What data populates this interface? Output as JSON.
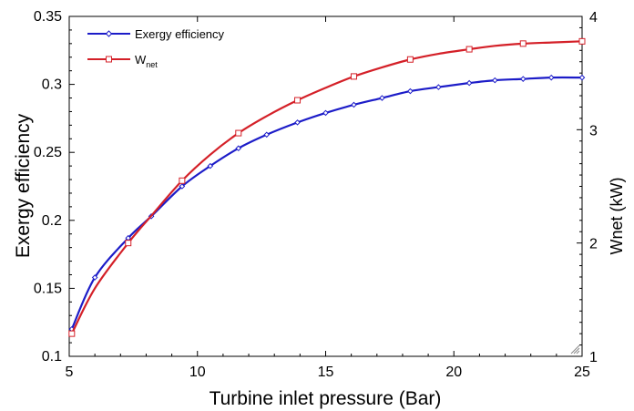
{
  "chart_data": {
    "type": "line",
    "title": "",
    "xlabel": "Turbine inlet pressure (Bar)",
    "ylabel_left": "Exergy efficiency",
    "ylabel_right": "Wnet (kW)",
    "xlim": [
      5,
      25
    ],
    "ylim_left": [
      0.1,
      0.35
    ],
    "ylim_right": [
      1,
      4
    ],
    "x_ticks": [
      "5",
      "10",
      "15",
      "20",
      "25"
    ],
    "y_left_ticks": [
      "0.1",
      "0.15",
      "0.2",
      "0.25",
      "0.3",
      "0.35"
    ],
    "y_right_ticks": [
      "1",
      "2",
      "3",
      "4"
    ],
    "grid": false,
    "legend_position": "top-left",
    "legend": {
      "exergy_label": "Exergy efficiency",
      "wnet_label_main": "W",
      "wnet_label_sub": "net"
    },
    "series": [
      {
        "name": "Exergy efficiency",
        "axis": "left",
        "color": "#1c1cc8",
        "marker": "diamond",
        "x": [
          5.1,
          6,
          7.3,
          8.2,
          9.4,
          10.5,
          11.6,
          12.7,
          13.9,
          15,
          16.1,
          17.2,
          18.3,
          19.4,
          20.6,
          21.6,
          22.7,
          23.8,
          25
        ],
        "y": [
          0.12,
          0.158,
          0.187,
          0.203,
          0.225,
          0.24,
          0.253,
          0.263,
          0.272,
          0.279,
          0.285,
          0.29,
          0.295,
          0.298,
          0.301,
          0.303,
          0.304,
          0.305,
          0.305
        ]
      },
      {
        "name": "Wnet",
        "axis": "right",
        "color": "#d42028",
        "marker": "square",
        "x": [
          5.1,
          6,
          7.3,
          8.2,
          9.4,
          10.5,
          11.6,
          12.7,
          13.9,
          15,
          16.1,
          17.2,
          18.3,
          19.4,
          20.6,
          21.6,
          22.7,
          23.8,
          25
        ],
        "y": [
          1.2,
          1.6,
          2.0,
          2.24,
          2.55,
          2.78,
          2.97,
          3.12,
          3.26,
          3.37,
          3.47,
          3.55,
          3.62,
          3.67,
          3.71,
          3.74,
          3.76,
          3.77,
          3.78
        ],
        "marker_x": [
          5.1,
          7.3,
          9.4,
          11.6,
          13.9,
          16.1,
          18.3,
          20.6,
          22.7,
          25
        ]
      }
    ]
  }
}
